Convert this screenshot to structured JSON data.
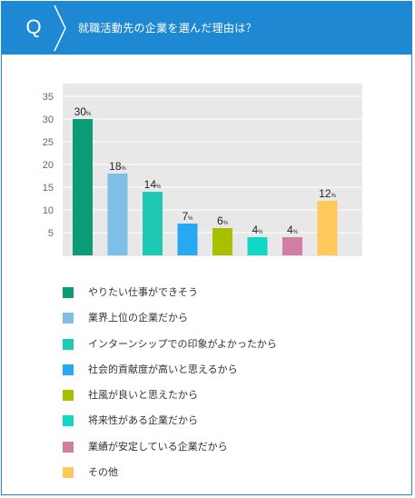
{
  "header": {
    "q_label": "Q",
    "title": "就職活動先の企業を選んだ理由は？"
  },
  "colors": {
    "brand_blue": "#1e88d2",
    "plot_background": "#e8e8e8"
  },
  "chart_data": {
    "type": "bar",
    "categories": [
      "やりたい仕事ができそう",
      "業界上位の企業だから",
      "インターンシップでの印象がよかったから",
      "社会的貢献度が高いと思えるから",
      "社風が良いと思えたから",
      "将来性がある企業だから",
      "業績が安定している企業だから",
      "その他"
    ],
    "values": [
      30,
      18,
      14,
      7,
      6,
      4,
      4,
      12
    ],
    "value_suffix": "%",
    "colors": [
      "#0b9c76",
      "#7ebfe8",
      "#1ecab4",
      "#27a8f2",
      "#a9c000",
      "#0fd9c4",
      "#d27ea2",
      "#ffc85a"
    ],
    "y_ticks": [
      5,
      10,
      15,
      20,
      25,
      30,
      35
    ],
    "ylim": [
      0,
      37
    ],
    "grid": true,
    "legend": "bottom"
  }
}
